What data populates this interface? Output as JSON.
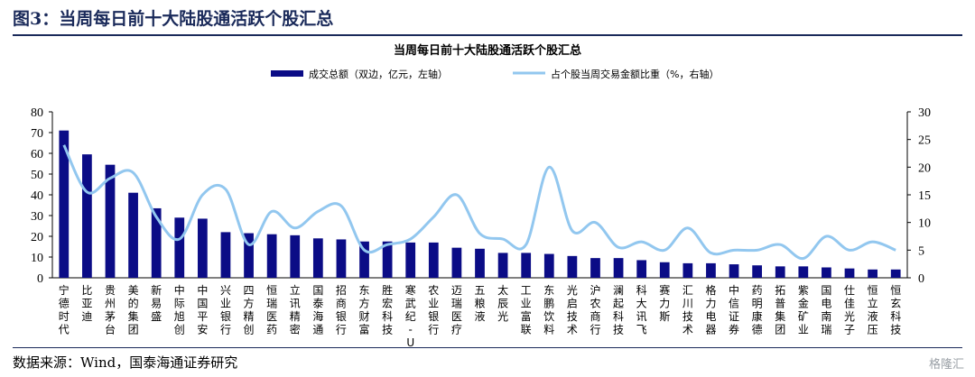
{
  "figure_title": "图3：当周每日前十大陆股通活跃个股汇总",
  "source": "数据来源：Wind，国泰海通证券研究",
  "watermark": "格隆汇",
  "colors": {
    "bar": "#0b0c86",
    "line": "#92c7ef",
    "header": "#1a2a5a"
  },
  "chart_data": {
    "type": "bar",
    "title": "当周每日前十大陆股通活跃个股汇总",
    "categories": [
      "宁德时代",
      "比亚迪",
      "贵州茅台",
      "美的集团",
      "新易盛",
      "中际旭创",
      "中国平安",
      "兴业银行",
      "四方精创",
      "恒瑞医药",
      "立讯精密",
      "国泰海通",
      "招商银行",
      "东方财富",
      "胜宏科技",
      "寒武纪-U",
      "农业银行",
      "迈瑞医疗",
      "五粮液",
      "太辰光",
      "工业富联",
      "东鹏饮料",
      "光启技术",
      "沪农商行",
      "澜起科技",
      "科大讯飞",
      "赛力斯",
      "汇川技术",
      "格力电器",
      "中信证券",
      "药明康德",
      "拓普集团",
      "紫金矿业",
      "国电南瑞",
      "仕佳光子",
      "恒立液压",
      "恒玄科技"
    ],
    "series": [
      {
        "name": "成交总额（双边，亿元，左轴）",
        "type": "bar",
        "axis": "left",
        "values": [
          71,
          59.5,
          54.5,
          41,
          33.5,
          29,
          28.5,
          22,
          21.5,
          21,
          20.5,
          19,
          18.5,
          17.5,
          17.5,
          17,
          17,
          14.5,
          14,
          12,
          12,
          11.5,
          10.5,
          9.5,
          9.5,
          8.5,
          7.5,
          7,
          7,
          6.5,
          6,
          5.5,
          5.5,
          5,
          4.5,
          4,
          4
        ]
      },
      {
        "name": "占个股当周交易金额比重（%，右轴）",
        "type": "line",
        "axis": "right",
        "values": [
          24,
          15.5,
          18,
          19,
          11,
          7,
          15,
          16,
          6,
          12,
          9,
          12,
          13,
          5,
          6,
          7,
          11,
          15,
          8,
          7,
          6,
          20,
          8.5,
          10,
          5.5,
          6.5,
          5,
          9,
          4.5,
          5,
          5,
          6,
          3.5,
          7.5,
          5,
          6.5,
          5
        ]
      }
    ],
    "ylim_left": [
      0,
      80
    ],
    "yticks_left": [
      0,
      10,
      20,
      30,
      40,
      50,
      60,
      70,
      80
    ],
    "ylim_right": [
      0,
      30
    ],
    "yticks_right": [
      0,
      5,
      10,
      15,
      20,
      25,
      30
    ],
    "legend_position": "top"
  }
}
